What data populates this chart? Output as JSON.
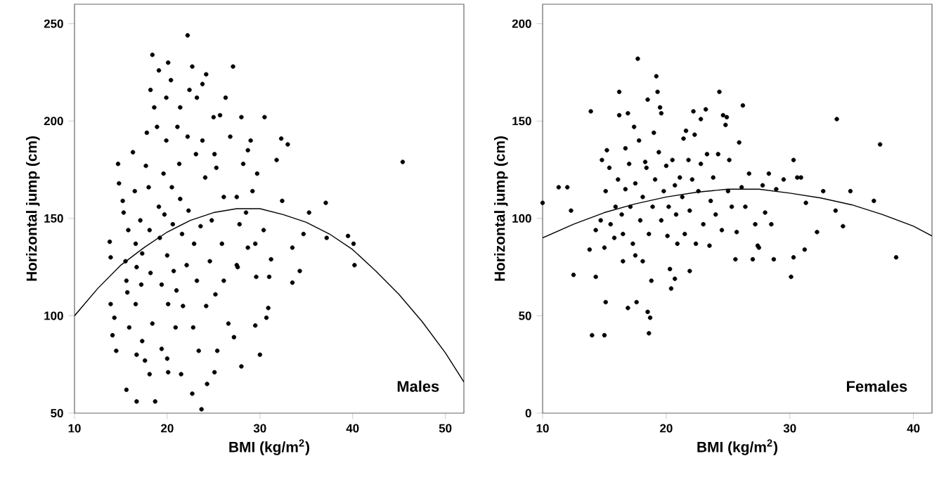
{
  "chart_data": [
    {
      "type": "scatter",
      "xlabel": "BMI (kg/m$^{2}$)",
      "ylabel": "Horizontal jump (cm)",
      "annotations": [
        "Males"
      ],
      "xlim": [
        10,
        52
      ],
      "ylim": [
        50,
        260
      ],
      "xticks": [
        10,
        20,
        30,
        40,
        50
      ],
      "yticks": [
        50,
        100,
        150,
        200,
        250
      ],
      "series": [
        {
          "color": "#000000",
          "x": [
            13.8,
            13.9,
            13.9,
            14.1,
            14.3,
            14.5,
            14.7,
            14.8,
            15.2,
            15.3,
            15.5,
            15.6,
            15.6,
            15.8,
            15.7,
            15.9,
            16.3,
            16.5,
            16.6,
            16.7,
            16.6,
            16.7,
            16.7,
            17.1,
            17.3,
            17.2,
            17.3,
            17.6,
            17.7,
            17.8,
            18.0,
            18.2,
            18.4,
            18.1,
            18.2,
            18.4,
            18.1,
            18.7,
            18.6,
            18.9,
            19.1,
            19.2,
            19.1,
            19.4,
            19.4,
            19.6,
            19.7,
            19.9,
            20.0,
            19.9,
            20.1,
            20.0,
            20.1,
            20.1,
            20.4,
            20.5,
            20.6,
            20.7,
            20.9,
            21.0,
            21.1,
            21.3,
            21.4,
            21.4,
            21.5,
            21.6,
            21.7,
            22.1,
            22.2,
            22.2,
            22.3,
            22.4,
            22.7,
            22.7,
            22.8,
            22.9,
            23.1,
            23.2,
            23.2,
            23.4,
            23.6,
            23.7,
            23.8,
            23.8,
            24.1,
            24.2,
            24.2,
            24.3,
            24.6,
            24.8,
            25.0,
            25.1,
            25.1,
            25.2,
            25.3,
            25.4,
            25.7,
            25.9,
            26.1,
            26.1,
            26.3,
            26.6,
            26.8,
            27.1,
            27.2,
            27.5,
            27.5,
            27.6,
            27.8,
            28.0,
            28.0,
            28.2,
            28.5,
            28.7,
            28.7,
            29.0,
            29.2,
            29.5,
            29.5,
            29.6,
            29.7,
            30.0,
            30.4,
            30.5,
            30.7,
            30.9,
            31.0,
            31.2,
            31.8,
            32.3,
            32.4,
            33.0,
            33.5,
            33.5,
            34.3,
            34.7,
            35.3,
            37.1,
            37.2,
            39.5,
            40.1,
            40.2,
            45.4
          ],
          "values": [
            138,
            130,
            106,
            90,
            99,
            82,
            178,
            168,
            159,
            153,
            128,
            118,
            62,
            144,
            112,
            94,
            184,
            164,
            137,
            125,
            106,
            80,
            56,
            149,
            132,
            116,
            87,
            77,
            177,
            194,
            166,
            216,
            234,
            144,
            122,
            96,
            70,
            56,
            207,
            197,
            156,
            140,
            226,
            116,
            83,
            173,
            152,
            212,
            131,
            190,
            106,
            78,
            71,
            230,
            221,
            166,
            147,
            123,
            94,
            113,
            197,
            178,
            207,
            160,
            70,
            142,
            105,
            126,
            192,
            244,
            154,
            216,
            60,
            228,
            94,
            137,
            183,
            118,
            212,
            82,
            146,
            52,
            219,
            190,
            171,
            105,
            224,
            65,
            128,
            149,
            202,
            183,
            71,
            111,
            176,
            82,
            203,
            137,
            161,
            118,
            212,
            96,
            192,
            228,
            89,
            161,
            126,
            125,
            147,
            202,
            74,
            178,
            153,
            185,
            135,
            190,
            164,
            137,
            95,
            120,
            173,
            80,
            144,
            202,
            99,
            104,
            120,
            129,
            180,
            191,
            159,
            188,
            135,
            117,
            123,
            142,
            153,
            158,
            140,
            141,
            137,
            126,
            179
          ]
        },
        {
          "type": "line",
          "color": "#000000",
          "line_style": "solid",
          "x": [
            10,
            12.5,
            15,
            17.5,
            20,
            22.5,
            25,
            27.5,
            30,
            32.5,
            35,
            37.5,
            40,
            42.5,
            45,
            47.5,
            50,
            52
          ],
          "values": [
            100,
            114,
            126,
            135,
            143,
            149,
            153,
            155,
            155,
            152,
            148,
            142,
            134,
            123,
            111,
            97,
            81,
            66
          ]
        }
      ]
    },
    {
      "type": "scatter",
      "xlabel": "BMI (kg/m$^{2}$)",
      "ylabel": "Horizontal jump (cm)",
      "annotations": [
        "Females"
      ],
      "xlim": [
        10,
        41.5
      ],
      "ylim": [
        0,
        210
      ],
      "xticks": [
        10,
        20,
        30,
        40
      ],
      "yticks": [
        0,
        50,
        100,
        150,
        200
      ],
      "series": [
        {
          "color": "#000000",
          "x": [
            10.0,
            11.3,
            12.0,
            12.3,
            12.5,
            13.8,
            13.9,
            14.0,
            14.3,
            14.3,
            14.7,
            14.8,
            15.0,
            15.0,
            15.1,
            15.1,
            15.2,
            15.4,
            15.5,
            15.8,
            15.9,
            16.1,
            16.2,
            16.2,
            16.4,
            16.5,
            16.5,
            16.7,
            16.7,
            16.9,
            16.9,
            17.0,
            17.1,
            17.3,
            17.4,
            17.5,
            17.5,
            17.6,
            17.7,
            17.8,
            17.9,
            18.1,
            18.1,
            18.3,
            18.4,
            18.5,
            18.5,
            18.6,
            18.7,
            18.6,
            18.8,
            18.9,
            19.0,
            19.1,
            19.2,
            19.3,
            19.4,
            19.5,
            19.6,
            19.6,
            19.8,
            20.0,
            20.1,
            20.2,
            20.3,
            20.4,
            20.5,
            20.7,
            20.7,
            20.8,
            20.9,
            21.1,
            21.3,
            21.4,
            21.5,
            21.6,
            21.8,
            21.9,
            21.9,
            22.1,
            22.2,
            22.3,
            22.4,
            22.6,
            22.8,
            22.8,
            23.0,
            23.2,
            23.3,
            23.5,
            23.6,
            23.8,
            24.0,
            24.2,
            24.3,
            24.5,
            24.6,
            24.8,
            24.9,
            25.0,
            25.1,
            25.3,
            25.6,
            25.7,
            25.9,
            26.1,
            26.2,
            26.4,
            26.7,
            27.0,
            27.2,
            27.4,
            27.5,
            27.8,
            28.0,
            28.3,
            28.5,
            28.7,
            28.9,
            29.5,
            30.1,
            30.3,
            30.3,
            30.6,
            30.9,
            31.2,
            31.3,
            32.2,
            32.7,
            33.7,
            33.8,
            34.3,
            34.9,
            36.8,
            37.3,
            38.6
          ],
          "values": [
            108,
            116,
            116,
            104,
            71,
            84,
            155,
            40,
            70,
            94,
            99,
            130,
            85,
            40,
            57,
            114,
            135,
            126,
            97,
            90,
            106,
            120,
            165,
            153,
            102,
            92,
            78,
            136,
            115,
            54,
            154,
            128,
            106,
            87,
            147,
            118,
            81,
            57,
            182,
            140,
            99,
            78,
            111,
            129,
            126,
            161,
            52,
            41,
            49,
            92,
            68,
            106,
            144,
            120,
            173,
            165,
            134,
            157,
            99,
            154,
            114,
            127,
            91,
            106,
            74,
            64,
            130,
            117,
            69,
            102,
            87,
            121,
            111,
            141,
            92,
            145,
            130,
            73,
            104,
            120,
            155,
            143,
            87,
            114,
            151,
            128,
            97,
            156,
            133,
            86,
            109,
            121,
            102,
            133,
            165,
            94,
            153,
            148,
            152,
            114,
            130,
            106,
            79,
            93,
            139,
            116,
            158,
            106,
            123,
            79,
            97,
            86,
            85,
            117,
            103,
            123,
            97,
            79,
            115,
            120,
            70,
            80,
            130,
            121,
            121,
            84,
            108,
            93,
            114,
            104,
            151,
            96,
            114,
            109,
            138,
            80
          ]
        },
        {
          "type": "line",
          "color": "#000000",
          "line_style": "solid",
          "x": [
            10,
            12.5,
            15,
            17.5,
            20,
            22.5,
            25,
            27.5,
            30,
            32.5,
            35,
            37.5,
            40,
            41.5
          ],
          "values": [
            90,
            97,
            103,
            107.5,
            111,
            113.5,
            115,
            115,
            113,
            110.5,
            107,
            102,
            96,
            91
          ]
        }
      ]
    }
  ]
}
